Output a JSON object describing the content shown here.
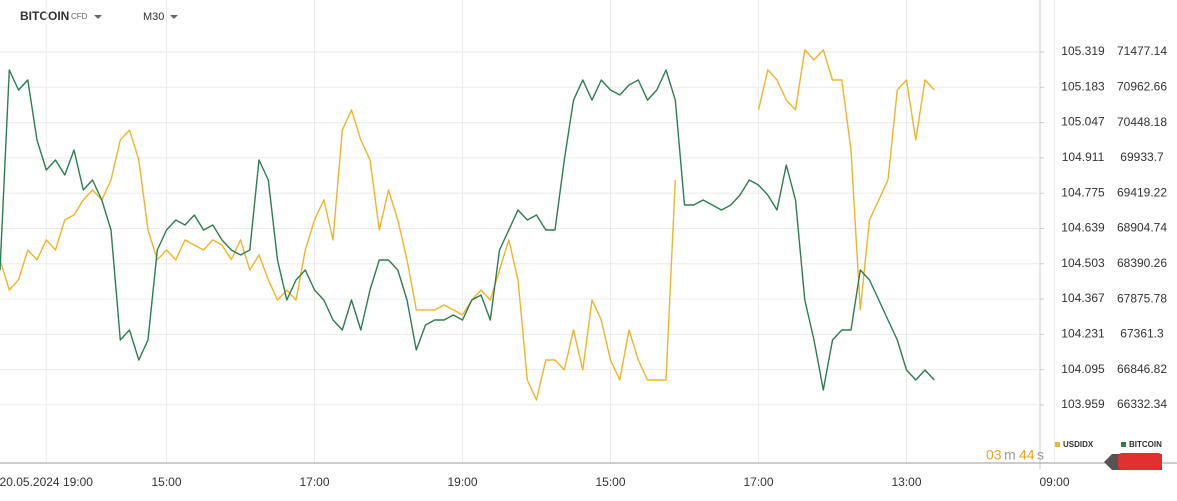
{
  "toolbar": {
    "symbol": "BITCOIN",
    "instrument": "CFD",
    "interval": "M30"
  },
  "countdown": [
    "03",
    "m",
    "44",
    "s"
  ],
  "chart_data": {
    "type": "line",
    "categories": [
      null,
      null,
      null,
      null,
      null,
      "20.05.2024 19:00",
      null,
      null,
      null,
      null,
      null,
      null,
      null,
      null,
      null,
      null,
      null,
      null,
      "15:00",
      null,
      null,
      null,
      null,
      null,
      null,
      null,
      null,
      null,
      null,
      null,
      null,
      null,
      null,
      null,
      "17:00",
      null,
      null,
      null,
      null,
      null,
      null,
      null,
      null,
      null,
      null,
      null,
      null,
      null,
      null,
      null,
      "19:00",
      null,
      null,
      null,
      null,
      null,
      null,
      null,
      null,
      null,
      null,
      null,
      null,
      null,
      null,
      null,
      "15:00",
      null,
      null,
      null,
      null,
      null,
      null,
      null,
      null,
      null,
      null,
      null,
      null,
      null,
      null,
      null,
      "17:00",
      null,
      null,
      null,
      null,
      null,
      null,
      null,
      null,
      null,
      null,
      null,
      null,
      null,
      null,
      null,
      "13:00",
      null,
      null,
      null,
      null,
      null,
      null,
      null,
      null,
      null,
      null,
      null,
      null,
      null,
      null,
      null,
      "09:00"
    ],
    "series": [
      {
        "name": "USDIDX",
        "color": "#f0b429",
        "axis": "y",
        "values": [
          104.518,
          104.402,
          104.441,
          104.556,
          104.518,
          104.595,
          104.556,
          104.672,
          104.691,
          104.749,
          104.787,
          104.749,
          104.826,
          104.98,
          105.018,
          104.903,
          104.633,
          104.518,
          104.556,
          104.518,
          104.595,
          104.575,
          104.556,
          104.595,
          104.575,
          104.518,
          104.595,
          104.479,
          104.537,
          104.441,
          104.363,
          104.402,
          104.363,
          104.556,
          104.672,
          104.749,
          104.595,
          105.018,
          105.096,
          104.98,
          104.903,
          104.633,
          104.787,
          104.672,
          104.518,
          104.325,
          104.325,
          104.325,
          104.344,
          104.325,
          104.306,
          104.363,
          104.402,
          104.363,
          104.479,
          104.595,
          104.441,
          104.055,
          103.978,
          104.132,
          104.132,
          104.094,
          104.248,
          104.094,
          104.363,
          104.286,
          104.132,
          104.055,
          104.248,
          104.132,
          104.055,
          104.055,
          104.055,
          104.826,
          null,
          null,
          null,
          null,
          null,
          null,
          null,
          null,
          105.096,
          105.25,
          105.211,
          105.134,
          105.096,
          105.327,
          105.288,
          105.327,
          105.211,
          105.211,
          104.941,
          104.325,
          104.672,
          104.749,
          104.826,
          105.173,
          105.211,
          104.98,
          105.211,
          105.173,
          null,
          null,
          null,
          null,
          null,
          null,
          null,
          null,
          null,
          null,
          null,
          null,
          null
        ]
      },
      {
        "name": "BITCOIN",
        "color": "#2e7d4f",
        "axis": "y2",
        "values": [
          68300,
          71215,
          70923,
          71069,
          70194,
          69757,
          69903,
          69684,
          70049,
          69466,
          69612,
          69320,
          68883,
          67280,
          67425,
          66988,
          67280,
          68591,
          68883,
          69028,
          68955,
          69101,
          68883,
          68955,
          68737,
          68591,
          68518,
          68591,
          69903,
          69612,
          68445,
          67862,
          68154,
          68300,
          68008,
          67862,
          67571,
          67425,
          67862,
          67425,
          68008,
          68445,
          68445,
          68300,
          67862,
          67134,
          67498,
          67571,
          67571,
          67644,
          67571,
          67862,
          67935,
          67571,
          68591,
          68883,
          69174,
          69028,
          69101,
          68883,
          68883,
          69903,
          70777,
          71069,
          70777,
          71069,
          70923,
          70850,
          70996,
          71069,
          70777,
          70923,
          71215,
          70777,
          69247,
          69247,
          69320,
          69247,
          69174,
          69247,
          69393,
          69612,
          69539,
          69393,
          69174,
          69830,
          69320,
          67862,
          67280,
          66551,
          67280,
          67425,
          67425,
          68300,
          68154,
          67862,
          67571,
          67280,
          66842,
          66697,
          66842,
          66697,
          null,
          null,
          null,
          null,
          null,
          null,
          null,
          null,
          null,
          null,
          null,
          null,
          null
        ]
      }
    ],
    "ylim": [
      103.739,
      105.423
    ],
    "yticks": [
      103.959,
      104.095,
      104.231,
      104.367,
      104.503,
      104.639,
      104.775,
      104.911,
      105.047,
      105.183,
      105.319
    ],
    "y2lim": [
      65501,
      71871
    ],
    "y2ticks": [
      66332.34,
      66846.82,
      67361.3,
      67875.78,
      68390.26,
      68904.74,
      69419.22,
      69933.7,
      70448.18,
      70962.66,
      71477.14
    ],
    "grid": true
  }
}
